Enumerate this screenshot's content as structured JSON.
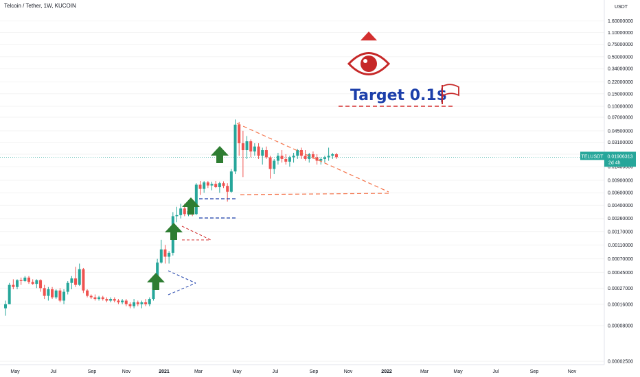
{
  "title": "Telcoin / Tether, 1W, KUCOIN",
  "symbol_badge": "TELUSDT",
  "price_badge": {
    "price": "0.01906313",
    "countdown": "2d 4h"
  },
  "price_axis_unit": "USDT",
  "annotation": {
    "target_label": "Target 0.1$",
    "flag_icon": "flag-icon",
    "eye_icon": "eye-icon"
  },
  "colors": {
    "up": "#26a69a",
    "down": "#ef5350",
    "arrow": "#2e7d32",
    "target": "#1c3faa",
    "accent": "#d32f2f"
  },
  "chart_data": {
    "type": "candlestick",
    "title": "Telcoin / Tether, 1W, KUCOIN",
    "xlabel": "",
    "ylabel": "",
    "y_scale": "log",
    "y_ticks": [
      "1.60000000",
      "1.10000000",
      "0.75000000",
      "0.50000000",
      "0.34000000",
      "0.22000000",
      "0.15000000",
      "0.10000000",
      "0.07000000",
      "0.04500000",
      "0.03100000",
      "0.02100000",
      "0.01400000",
      "0.00900000",
      "0.00600000",
      "0.00400000",
      "0.00260000",
      "0.00170000",
      "0.00110000",
      "0.00070000",
      "0.00045000",
      "0.00027000",
      "0.00016000",
      "0.00008000",
      "0.00002500"
    ],
    "x_ticks": [
      "May",
      "Jul",
      "Sep",
      "Nov",
      "2021",
      "Mar",
      "May",
      "Jul",
      "Sep",
      "Nov",
      "2022",
      "Mar",
      "May",
      "Jul",
      "Sep",
      "Nov"
    ],
    "current_price": 0.01906313,
    "candles": [
      {
        "o": 0.00014,
        "h": 0.00018,
        "l": 0.00011,
        "c": 0.00016
      },
      {
        "o": 0.00016,
        "h": 0.00032,
        "l": 0.00016,
        "c": 0.0003
      },
      {
        "o": 0.0003,
        "h": 0.00036,
        "l": 0.00026,
        "c": 0.00028
      },
      {
        "o": 0.00028,
        "h": 0.00036,
        "l": 0.00026,
        "c": 0.00035
      },
      {
        "o": 0.00035,
        "h": 0.00038,
        "l": 0.0003,
        "c": 0.00034
      },
      {
        "o": 0.00034,
        "h": 0.0004,
        "l": 0.00033,
        "c": 0.00038
      },
      {
        "o": 0.00038,
        "h": 0.0004,
        "l": 0.00031,
        "c": 0.00033
      },
      {
        "o": 0.00033,
        "h": 0.00036,
        "l": 0.0003,
        "c": 0.00031
      },
      {
        "o": 0.00031,
        "h": 0.00036,
        "l": 0.00027,
        "c": 0.00035
      },
      {
        "o": 0.00035,
        "h": 0.00036,
        "l": 0.00024,
        "c": 0.00027
      },
      {
        "o": 0.00027,
        "h": 0.0003,
        "l": 0.00019,
        "c": 0.00021
      },
      {
        "o": 0.00021,
        "h": 0.00028,
        "l": 0.00018,
        "c": 0.00026
      },
      {
        "o": 0.00026,
        "h": 0.00028,
        "l": 0.00019,
        "c": 0.0002
      },
      {
        "o": 0.0002,
        "h": 0.00026,
        "l": 0.00019,
        "c": 0.00025
      },
      {
        "o": 0.00025,
        "h": 0.00027,
        "l": 0.00017,
        "c": 0.00018
      },
      {
        "o": 0.00018,
        "h": 0.00026,
        "l": 0.00016,
        "c": 0.00024
      },
      {
        "o": 0.00024,
        "h": 0.00034,
        "l": 0.00022,
        "c": 0.00032
      },
      {
        "o": 0.00032,
        "h": 0.0004,
        "l": 0.00026,
        "c": 0.00037
      },
      {
        "o": 0.00037,
        "h": 0.00054,
        "l": 0.00028,
        "c": 0.0003
      },
      {
        "o": 0.0003,
        "h": 0.0006,
        "l": 0.00029,
        "c": 0.0005
      },
      {
        "o": 0.0005,
        "h": 0.00052,
        "l": 0.00023,
        "c": 0.00025
      },
      {
        "o": 0.00025,
        "h": 0.00026,
        "l": 0.0002,
        "c": 0.00021
      },
      {
        "o": 0.00021,
        "h": 0.00022,
        "l": 0.00019,
        "c": 0.0002
      },
      {
        "o": 0.0002,
        "h": 0.00022,
        "l": 0.00018,
        "c": 0.00019
      },
      {
        "o": 0.00019,
        "h": 0.00021,
        "l": 0.00018,
        "c": 0.0002
      },
      {
        "o": 0.0002,
        "h": 0.00021,
        "l": 0.00018,
        "c": 0.00019
      },
      {
        "o": 0.00019,
        "h": 0.0002,
        "l": 0.00017,
        "c": 0.00018
      },
      {
        "o": 0.00018,
        "h": 0.0002,
        "l": 0.00017,
        "c": 0.00019
      },
      {
        "o": 0.00019,
        "h": 0.0002,
        "l": 0.00017,
        "c": 0.00018
      },
      {
        "o": 0.00018,
        "h": 0.00019,
        "l": 0.00016,
        "c": 0.00017
      },
      {
        "o": 0.00017,
        "h": 0.00019,
        "l": 0.00016,
        "c": 0.00018
      },
      {
        "o": 0.00018,
        "h": 0.00019,
        "l": 0.00015,
        "c": 0.00016
      },
      {
        "o": 0.00016,
        "h": 0.00017,
        "l": 0.00014,
        "c": 0.00015
      },
      {
        "o": 0.00015,
        "h": 0.00019,
        "l": 0.00014,
        "c": 0.00017
      },
      {
        "o": 0.00017,
        "h": 0.00018,
        "l": 0.00015,
        "c": 0.00016
      },
      {
        "o": 0.00016,
        "h": 0.00018,
        "l": 0.00014,
        "c": 0.00017
      },
      {
        "o": 0.00017,
        "h": 0.00019,
        "l": 0.00015,
        "c": 0.00016
      },
      {
        "o": 0.00016,
        "h": 0.0002,
        "l": 0.00015,
        "c": 0.00019
      },
      {
        "o": 0.00019,
        "h": 0.0004,
        "l": 0.00018,
        "c": 0.00036
      },
      {
        "o": 0.00036,
        "h": 0.0007,
        "l": 0.00032,
        "c": 0.00062
      },
      {
        "o": 0.00062,
        "h": 0.0013,
        "l": 0.0006,
        "c": 0.00095
      },
      {
        "o": 0.00095,
        "h": 0.0011,
        "l": 0.0006,
        "c": 0.00075
      },
      {
        "o": 0.00075,
        "h": 0.0009,
        "l": 0.0006,
        "c": 0.00085
      },
      {
        "o": 0.00085,
        "h": 0.0032,
        "l": 0.00078,
        "c": 0.0028
      },
      {
        "o": 0.0028,
        "h": 0.0038,
        "l": 0.0023,
        "c": 0.0029
      },
      {
        "o": 0.0029,
        "h": 0.0042,
        "l": 0.0026,
        "c": 0.0036
      },
      {
        "o": 0.0036,
        "h": 0.0042,
        "l": 0.0028,
        "c": 0.003
      },
      {
        "o": 0.003,
        "h": 0.0034,
        "l": 0.0028,
        "c": 0.0033
      },
      {
        "o": 0.0033,
        "h": 0.0034,
        "l": 0.0028,
        "c": 0.003
      },
      {
        "o": 0.003,
        "h": 0.0082,
        "l": 0.0029,
        "c": 0.0078
      },
      {
        "o": 0.0078,
        "h": 0.0088,
        "l": 0.0056,
        "c": 0.0068
      },
      {
        "o": 0.0068,
        "h": 0.0088,
        "l": 0.006,
        "c": 0.0084
      },
      {
        "o": 0.0084,
        "h": 0.0088,
        "l": 0.007,
        "c": 0.0076
      },
      {
        "o": 0.0076,
        "h": 0.0086,
        "l": 0.0065,
        "c": 0.008
      },
      {
        "o": 0.008,
        "h": 0.0088,
        "l": 0.007,
        "c": 0.0072
      },
      {
        "o": 0.0072,
        "h": 0.0086,
        "l": 0.006,
        "c": 0.0082
      },
      {
        "o": 0.0082,
        "h": 0.0087,
        "l": 0.007,
        "c": 0.0075
      },
      {
        "o": 0.0075,
        "h": 0.0082,
        "l": 0.0045,
        "c": 0.0062
      },
      {
        "o": 0.0062,
        "h": 0.013,
        "l": 0.006,
        "c": 0.012
      },
      {
        "o": 0.012,
        "h": 0.065,
        "l": 0.011,
        "c": 0.055
      },
      {
        "o": 0.055,
        "h": 0.06,
        "l": 0.02,
        "c": 0.03
      },
      {
        "o": 0.03,
        "h": 0.045,
        "l": 0.01,
        "c": 0.024
      },
      {
        "o": 0.024,
        "h": 0.038,
        "l": 0.018,
        "c": 0.032
      },
      {
        "o": 0.032,
        "h": 0.034,
        "l": 0.019,
        "c": 0.023
      },
      {
        "o": 0.023,
        "h": 0.03,
        "l": 0.02,
        "c": 0.027
      },
      {
        "o": 0.027,
        "h": 0.03,
        "l": 0.018,
        "c": 0.02
      },
      {
        "o": 0.02,
        "h": 0.026,
        "l": 0.015,
        "c": 0.024
      },
      {
        "o": 0.024,
        "h": 0.027,
        "l": 0.018,
        "c": 0.019
      },
      {
        "o": 0.019,
        "h": 0.02,
        "l": 0.0095,
        "c": 0.013
      },
      {
        "o": 0.013,
        "h": 0.018,
        "l": 0.011,
        "c": 0.017
      },
      {
        "o": 0.017,
        "h": 0.022,
        "l": 0.015,
        "c": 0.02
      },
      {
        "o": 0.02,
        "h": 0.024,
        "l": 0.016,
        "c": 0.018
      },
      {
        "o": 0.018,
        "h": 0.021,
        "l": 0.015,
        "c": 0.0165
      },
      {
        "o": 0.0165,
        "h": 0.02,
        "l": 0.014,
        "c": 0.019
      },
      {
        "o": 0.019,
        "h": 0.022,
        "l": 0.016,
        "c": 0.02
      },
      {
        "o": 0.02,
        "h": 0.025,
        "l": 0.018,
        "c": 0.024
      },
      {
        "o": 0.024,
        "h": 0.026,
        "l": 0.018,
        "c": 0.02
      },
      {
        "o": 0.02,
        "h": 0.024,
        "l": 0.017,
        "c": 0.018
      },
      {
        "o": 0.018,
        "h": 0.022,
        "l": 0.016,
        "c": 0.021
      },
      {
        "o": 0.021,
        "h": 0.023,
        "l": 0.018,
        "c": 0.019
      },
      {
        "o": 0.019,
        "h": 0.021,
        "l": 0.015,
        "c": 0.017
      },
      {
        "o": 0.017,
        "h": 0.019,
        "l": 0.015,
        "c": 0.018
      },
      {
        "o": 0.018,
        "h": 0.02,
        "l": 0.016,
        "c": 0.019
      },
      {
        "o": 0.019,
        "h": 0.026,
        "l": 0.017,
        "c": 0.02
      },
      {
        "o": 0.02,
        "h": 0.022,
        "l": 0.018,
        "c": 0.021
      },
      {
        "o": 0.021,
        "h": 0.022,
        "l": 0.018,
        "c": 0.01906313
      }
    ]
  }
}
